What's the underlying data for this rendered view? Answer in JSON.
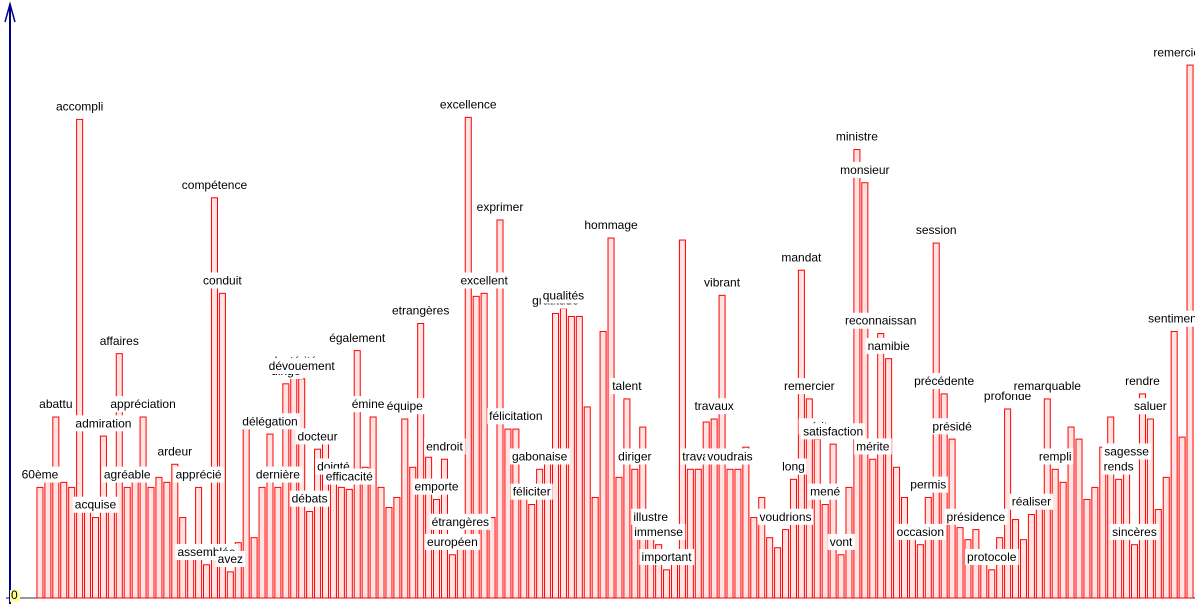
{
  "chart_data": {
    "type": "bar",
    "categories": [
      "60ème",
      null,
      "abattu",
      null,
      null,
      "accompli",
      null,
      "acquise",
      "admiration",
      null,
      "affaires",
      "agréable",
      null,
      "appréciation",
      null,
      null,
      null,
      "ardeur",
      null,
      null,
      "apprécié",
      "assemblée",
      "compétence",
      "conduit",
      "avez",
      null,
      null,
      null,
      null,
      "délégation",
      "dernière",
      "dirigé",
      "dextérité",
      "dévouement",
      "débats",
      "docteur",
      null,
      "doigté",
      null,
      "efficacité",
      "également",
      null,
      "éminent",
      null,
      null,
      null,
      "équipe",
      null,
      "etrangères",
      null,
      "emporte",
      "endroit",
      "européen",
      "étrangères",
      "excellence",
      null,
      "excellent",
      null,
      "exprimer",
      null,
      "félicitation",
      null,
      "féliciter",
      "gabonaise",
      null,
      "gratitude",
      "qualités",
      null,
      null,
      null,
      null,
      null,
      "hommage",
      null,
      "talent",
      "diriger",
      null,
      "illustre",
      "immense",
      "important",
      null,
      null,
      null,
      "travail",
      null,
      "travaux",
      "vibrant",
      "voudrais",
      null,
      null,
      null,
      null,
      null,
      null,
      "voudrions",
      "long",
      "mandat",
      "remercier",
      "mérite",
      "mené",
      "satisfaction",
      "vont",
      null,
      "ministre",
      "monsieur",
      "mérite",
      "reconnaissan",
      "namibie",
      null,
      null,
      null,
      "occasion",
      "permis",
      "session",
      "précédente",
      "présidé",
      null,
      null,
      "présidence",
      null,
      "protocole",
      null,
      "profonde",
      null,
      null,
      "réaliser",
      null,
      "remarquable",
      "rempli",
      null,
      null,
      null,
      null,
      null,
      null,
      null,
      "rends",
      "sagesse",
      "sincères",
      "rendre",
      "saluer",
      null,
      null,
      "sentiment",
      null,
      "remerciement"
    ],
    "values": [
      110,
      118,
      180,
      115,
      110,
      476,
      95,
      80,
      161,
      100,
      243,
      110,
      130,
      180,
      110,
      120,
      115,
      133,
      80,
      50,
      110,
      33,
      398,
      303,
      26,
      55,
      172,
      60,
      110,
      163,
      110,
      213,
      223,
      218,
      86,
      148,
      160,
      118,
      110,
      108,
      246,
      130,
      180,
      110,
      90,
      100,
      178,
      130,
      273,
      140,
      98,
      138,
      43,
      63,
      478,
      300,
      303,
      80,
      376,
      168,
      168,
      100,
      93,
      128,
      140,
      283,
      288,
      280,
      280,
      190,
      100,
      265,
      358,
      120,
      198,
      128,
      170,
      68,
      53,
      28,
      48,
      356,
      128,
      128,
      175,
      178,
      301,
      128,
      128,
      150,
      80,
      100,
      60,
      50,
      68,
      118,
      326,
      198,
      158,
      93,
      153,
      43,
      110,
      446,
      413,
      138,
      263,
      238,
      130,
      100,
      60,
      53,
      100,
      353,
      203,
      158,
      70,
      58,
      68,
      40,
      28,
      60,
      188,
      78,
      58,
      83,
      100,
      198,
      128,
      115,
      170,
      158,
      98,
      110,
      150,
      180,
      118,
      133,
      53,
      203,
      178,
      88,
      120,
      265,
      160,
      530
    ],
    "color": "#ff0000",
    "ylim": [
      0,
      545
    ],
    "yticks": [
      0
    ]
  }
}
